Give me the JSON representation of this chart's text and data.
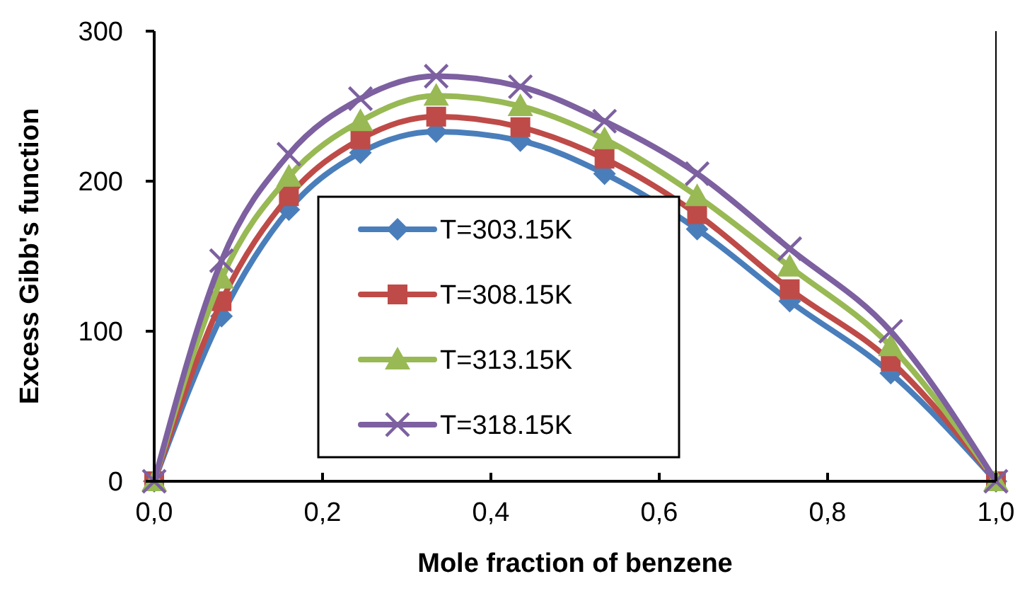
{
  "chart_data": {
    "type": "line",
    "xlabel": "Mole fraction of benzene",
    "ylabel": "Excess Gibb's function",
    "xlim": [
      0,
      1
    ],
    "ylim": [
      0,
      300
    ],
    "xticks": [
      {
        "value": 0,
        "label": "0,0"
      },
      {
        "value": 0.2,
        "label": "0,2"
      },
      {
        "value": 0.4,
        "label": "0,4"
      },
      {
        "value": 0.6,
        "label": "0,6"
      },
      {
        "value": 0.8,
        "label": "0,8"
      },
      {
        "value": 1,
        "label": "1,0"
      }
    ],
    "yticks": [
      0,
      100,
      200,
      300
    ],
    "x": [
      0,
      0.08,
      0.16,
      0.245,
      0.335,
      0.435,
      0.535,
      0.645,
      0.755,
      0.875,
      1.0
    ],
    "legend": "bottom left",
    "grid": false,
    "series": [
      {
        "name": "T=303.15K",
        "color": "#4a7ebb",
        "marker": "diamond",
        "values": [
          0,
          110,
          181,
          219,
          233,
          227,
          205,
          168,
          120,
          72,
          0
        ]
      },
      {
        "name": "T=308.15K",
        "color": "#be4b48",
        "marker": "square",
        "values": [
          0,
          120,
          190,
          228,
          243,
          236,
          215,
          178,
          128,
          80,
          0
        ]
      },
      {
        "name": "T=313.15K",
        "color": "#98b954",
        "marker": "triangle",
        "values": [
          0,
          135,
          203,
          240,
          257,
          250,
          228,
          190,
          143,
          90,
          0
        ]
      },
      {
        "name": "T=318.15K",
        "color": "#7d60a0",
        "marker": "cross",
        "values": [
          0,
          147,
          218,
          255,
          270,
          263,
          240,
          205,
          155,
          100,
          0
        ]
      }
    ]
  }
}
